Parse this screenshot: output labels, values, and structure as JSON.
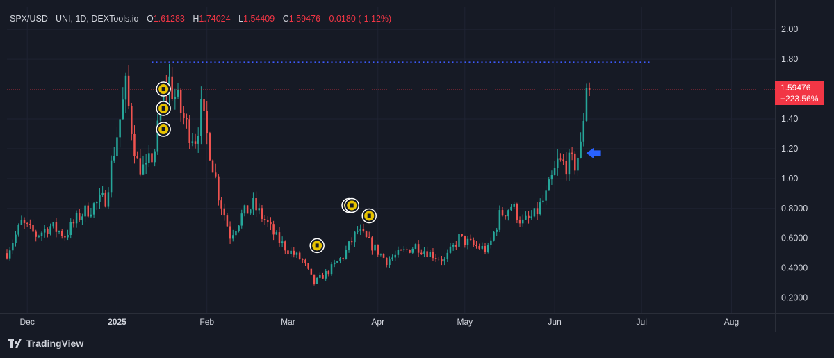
{
  "header": {
    "symbol": "SPX/USD - UNI, 1D, DEXTools.io",
    "open_label": "O",
    "open": "1.61283",
    "high_label": "H",
    "high": "1.74024",
    "low_label": "L",
    "low": "1.54409",
    "close_label": "C",
    "close": "1.59476",
    "change": "-0.0180 (-1.12%)"
  },
  "price_tag": {
    "price": "1.59476",
    "change_pct": "+223.56%"
  },
  "branding": "TradingView",
  "colors": {
    "bg": "#161a25",
    "up": "#26a69a",
    "down": "#ef5350",
    "text": "#d1d4dc",
    "tag": "#f23645",
    "level": "#3d5afe",
    "arrow": "#2962ff"
  },
  "chart_data": {
    "type": "candlestick",
    "title": "SPX/USD - UNI, 1D, DEXTools.io",
    "x_range": [
      "2024-11-24",
      "2025-08-16"
    ],
    "ylim": [
      0.1,
      2.15
    ],
    "y_ticks": [
      {
        "label": "2.00",
        "value": 2.0
      },
      {
        "label": "1.80",
        "value": 1.8
      },
      {
        "label": "1.40",
        "value": 1.4
      },
      {
        "label": "1.20",
        "value": 1.2
      },
      {
        "label": "1.00",
        "value": 1.0
      },
      {
        "label": "0.8000",
        "value": 0.8
      },
      {
        "label": "0.6000",
        "value": 0.6
      },
      {
        "label": "0.4000",
        "value": 0.4
      },
      {
        "label": "0.2000",
        "value": 0.2
      }
    ],
    "x_ticks": [
      {
        "label": "Dec",
        "date": "2024-12-01",
        "bold": false
      },
      {
        "label": "2025",
        "date": "2025-01-01",
        "bold": true
      },
      {
        "label": "Feb",
        "date": "2025-02-01",
        "bold": false
      },
      {
        "label": "Mar",
        "date": "2025-03-01",
        "bold": false
      },
      {
        "label": "Apr",
        "date": "2025-04-01",
        "bold": false
      },
      {
        "label": "May",
        "date": "2025-05-01",
        "bold": false
      },
      {
        "label": "Jun",
        "date": "2025-06-01",
        "bold": false
      },
      {
        "label": "Jul",
        "date": "2025-07-01",
        "bold": false
      },
      {
        "label": "Aug",
        "date": "2025-08-01",
        "bold": false
      }
    ],
    "last_price": 1.59476,
    "resistance_level": 1.78,
    "resistance_span": [
      "2025-01-13",
      "2025-07-04"
    ],
    "annotations": [
      {
        "date": "2025-01-17",
        "price": 1.6
      },
      {
        "date": "2025-01-17",
        "price": 1.47
      },
      {
        "date": "2025-01-17",
        "price": 1.33
      },
      {
        "date": "2025-03-11",
        "price": 0.55
      },
      {
        "date": "2025-03-22",
        "price": 0.82
      },
      {
        "date": "2025-03-23",
        "price": 0.82
      },
      {
        "date": "2025-03-29",
        "price": 0.75
      }
    ],
    "arrow": {
      "date": "2025-06-10",
      "price": 1.17
    },
    "closes": [
      {
        "date": "2024-11-24",
        "value": 0.5
      },
      {
        "date": "2024-11-29",
        "value": 0.7
      },
      {
        "date": "2024-12-04",
        "value": 0.62
      },
      {
        "date": "2024-12-09",
        "value": 0.68
      },
      {
        "date": "2024-12-14",
        "value": 0.62
      },
      {
        "date": "2024-12-19",
        "value": 0.75
      },
      {
        "date": "2024-12-24",
        "value": 0.82
      },
      {
        "date": "2024-12-28",
        "value": 0.87
      },
      {
        "date": "2025-01-01",
        "value": 1.3
      },
      {
        "date": "2025-01-04",
        "value": 1.6
      },
      {
        "date": "2025-01-08",
        "value": 1.1
      },
      {
        "date": "2025-01-11",
        "value": 1.05
      },
      {
        "date": "2025-01-14",
        "value": 1.2
      },
      {
        "date": "2025-01-17",
        "value": 1.55
      },
      {
        "date": "2025-01-19",
        "value": 1.65
      },
      {
        "date": "2025-01-22",
        "value": 1.5
      },
      {
        "date": "2025-01-25",
        "value": 1.35
      },
      {
        "date": "2025-01-28",
        "value": 1.28
      },
      {
        "date": "2025-01-30",
        "value": 1.45
      },
      {
        "date": "2025-02-02",
        "value": 1.2
      },
      {
        "date": "2025-02-05",
        "value": 0.9
      },
      {
        "date": "2025-02-09",
        "value": 0.62
      },
      {
        "date": "2025-02-13",
        "value": 0.75
      },
      {
        "date": "2025-02-17",
        "value": 0.82
      },
      {
        "date": "2025-02-21",
        "value": 0.72
      },
      {
        "date": "2025-02-25",
        "value": 0.6
      },
      {
        "date": "2025-03-01",
        "value": 0.52
      },
      {
        "date": "2025-03-06",
        "value": 0.45
      },
      {
        "date": "2025-03-10",
        "value": 0.3
      },
      {
        "date": "2025-03-15",
        "value": 0.38
      },
      {
        "date": "2025-03-20",
        "value": 0.48
      },
      {
        "date": "2025-03-25",
        "value": 0.65
      },
      {
        "date": "2025-03-30",
        "value": 0.55
      },
      {
        "date": "2025-04-04",
        "value": 0.45
      },
      {
        "date": "2025-04-09",
        "value": 0.5
      },
      {
        "date": "2025-04-14",
        "value": 0.55
      },
      {
        "date": "2025-04-19",
        "value": 0.5
      },
      {
        "date": "2025-04-24",
        "value": 0.45
      },
      {
        "date": "2025-04-29",
        "value": 0.6
      },
      {
        "date": "2025-05-04",
        "value": 0.55
      },
      {
        "date": "2025-05-09",
        "value": 0.52
      },
      {
        "date": "2025-05-13",
        "value": 0.75
      },
      {
        "date": "2025-05-17",
        "value": 0.82
      },
      {
        "date": "2025-05-21",
        "value": 0.7
      },
      {
        "date": "2025-05-25",
        "value": 0.75
      },
      {
        "date": "2025-05-29",
        "value": 0.88
      },
      {
        "date": "2025-06-02",
        "value": 1.1
      },
      {
        "date": "2025-06-05",
        "value": 1.1
      },
      {
        "date": "2025-06-08",
        "value": 1.1
      },
      {
        "date": "2025-06-10",
        "value": 1.2
      },
      {
        "date": "2025-06-12",
        "value": 1.65
      },
      {
        "date": "2025-06-13",
        "value": 1.59
      }
    ]
  }
}
